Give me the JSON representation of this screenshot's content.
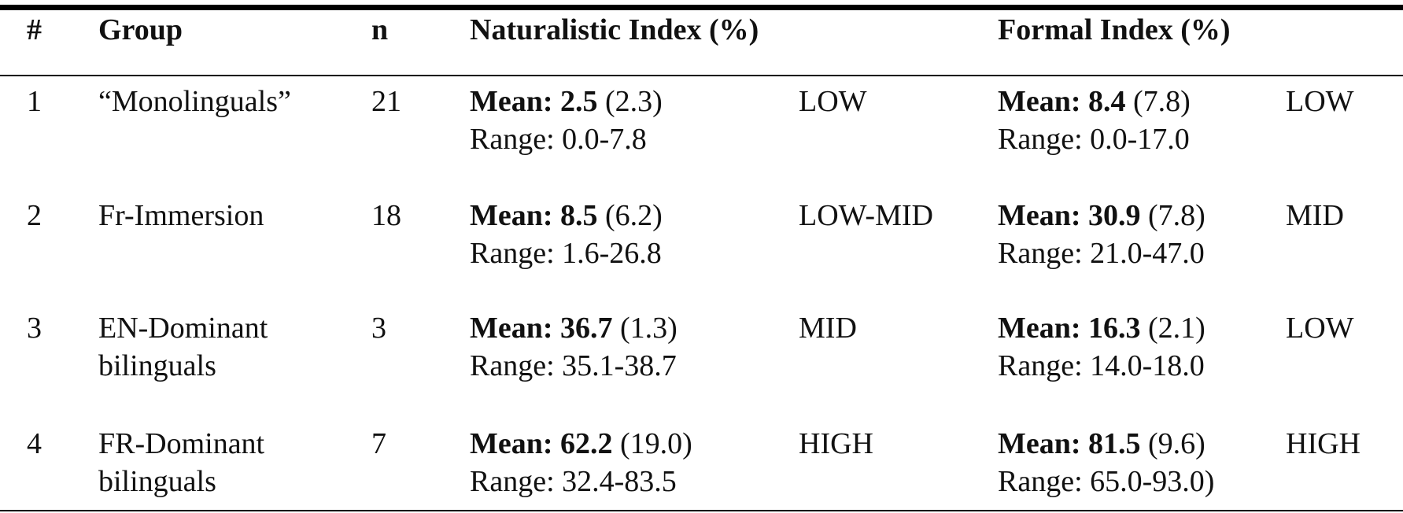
{
  "table": {
    "headers": [
      "#",
      "Group",
      "n",
      "Naturalistic Index (%)",
      "Formal Index (%)"
    ],
    "rows": [
      {
        "id": "1",
        "group": [
          "“Monolinguals”"
        ],
        "n": "21",
        "naturalistic": {
          "mean_label": "Mean:",
          "mean": "2.5",
          "sd": "(2.3)",
          "range": "Range: 0.0-7.8",
          "level": "LOW"
        },
        "formal": {
          "mean_label": "Mean:",
          "mean": "8.4",
          "sd": "(7.8)",
          "range": "Range: 0.0-17.0",
          "level": "LOW"
        }
      },
      {
        "id": "2",
        "group": [
          "Fr-Immersion"
        ],
        "n": "18",
        "naturalistic": {
          "mean_label": "Mean:",
          "mean": "8.5",
          "sd": "(6.2)",
          "range": "Range: 1.6-26.8",
          "level": "LOW-MID"
        },
        "formal": {
          "mean_label": "Mean:",
          "mean": "30.9",
          "sd": "(7.8)",
          "range": "Range: 21.0-47.0",
          "level": "MID"
        }
      },
      {
        "id": "3",
        "group": [
          "EN-Dominant",
          "bilinguals"
        ],
        "n": "3",
        "naturalistic": {
          "mean_label": "Mean:",
          "mean": "36.7",
          "sd": "(1.3)",
          "range": "Range: 35.1-38.7",
          "level": "MID"
        },
        "formal": {
          "mean_label": "Mean:",
          "mean": "16.3",
          "sd": "(2.1)",
          "range": "Range: 14.0-18.0",
          "level": "LOW"
        }
      },
      {
        "id": "4",
        "group": [
          "FR-Dominant",
          "bilinguals"
        ],
        "n": "7",
        "naturalistic": {
          "mean_label": "Mean:",
          "mean": "62.2",
          "sd": "(19.0)",
          "range": "Range: 32.4-83.5",
          "level": "HIGH"
        },
        "formal": {
          "mean_label": "Mean:",
          "mean": "81.5",
          "sd": "(9.6)",
          "range": "Range: 65.0-93.0)",
          "level": "HIGH"
        }
      }
    ]
  }
}
